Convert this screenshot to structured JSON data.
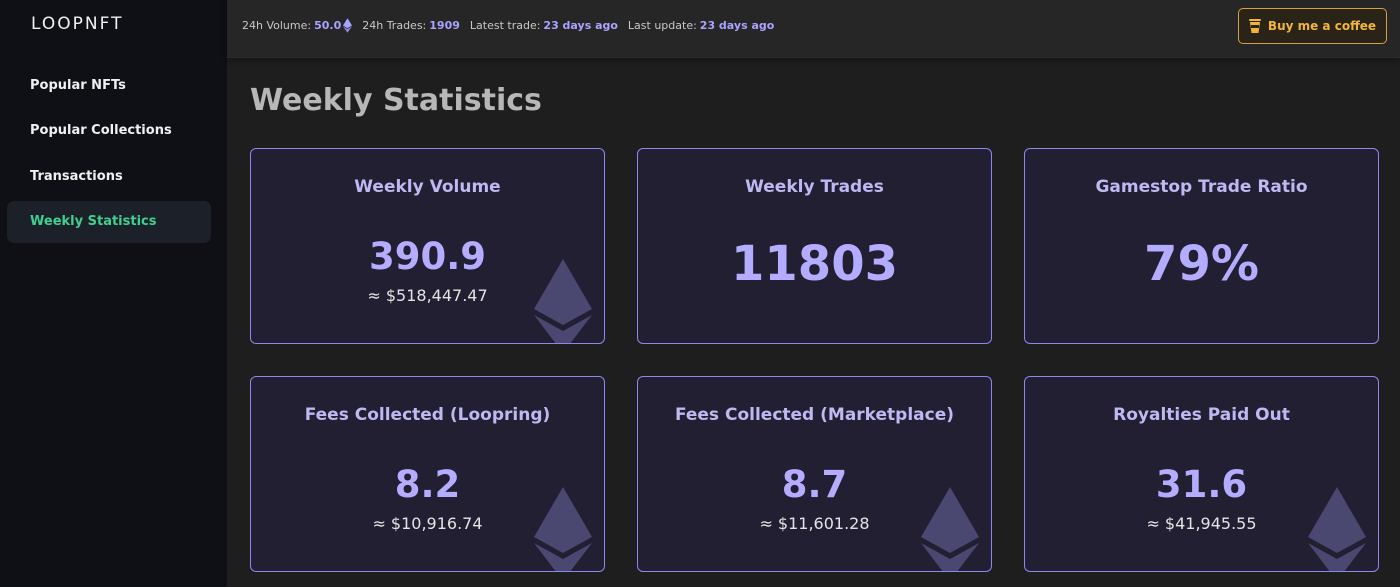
{
  "app": {
    "logo": "LOOPNFT"
  },
  "sidebar": {
    "items": [
      {
        "label": "Popular NFTs",
        "active": false
      },
      {
        "label": "Popular Collections",
        "active": false
      },
      {
        "label": "Transactions",
        "active": false
      },
      {
        "label": "Weekly Statistics",
        "active": true
      }
    ]
  },
  "topbar": {
    "volume_label": "24h Volume:",
    "volume_value": "50.0",
    "trades_label": "24h Trades:",
    "trades_value": "1909",
    "latest_trade_label": "Latest trade:",
    "latest_trade_value": "23 days ago",
    "last_update_label": "Last update:",
    "last_update_value": "23 days ago",
    "coffee_button": "Buy me a coffee"
  },
  "main": {
    "title": "Weekly Statistics",
    "cards": [
      {
        "title": "Weekly Volume",
        "value": "390.9",
        "sub": "≈ $518,447.47",
        "icon": "eth-icon"
      },
      {
        "title": "Weekly Trades",
        "value": "11803"
      },
      {
        "title": "Gamestop Trade Ratio",
        "value": "79%"
      },
      {
        "title": "Fees Collected (Loopring)",
        "value": "8.2",
        "sub": "≈ $10,916.74",
        "icon": "eth-icon"
      },
      {
        "title": "Fees Collected (Marketplace)",
        "value": "8.7",
        "sub": "≈ $11,601.28",
        "icon": "eth-icon"
      },
      {
        "title": "Royalties Paid Out",
        "value": "31.6",
        "sub": "≈ $41,945.55",
        "icon": "eth-icon"
      }
    ]
  },
  "colors": {
    "accent": "#b3acff",
    "active_nav": "#3fcf8e",
    "coffee": "#f2b53a",
    "card_border": "#8b88ee"
  }
}
